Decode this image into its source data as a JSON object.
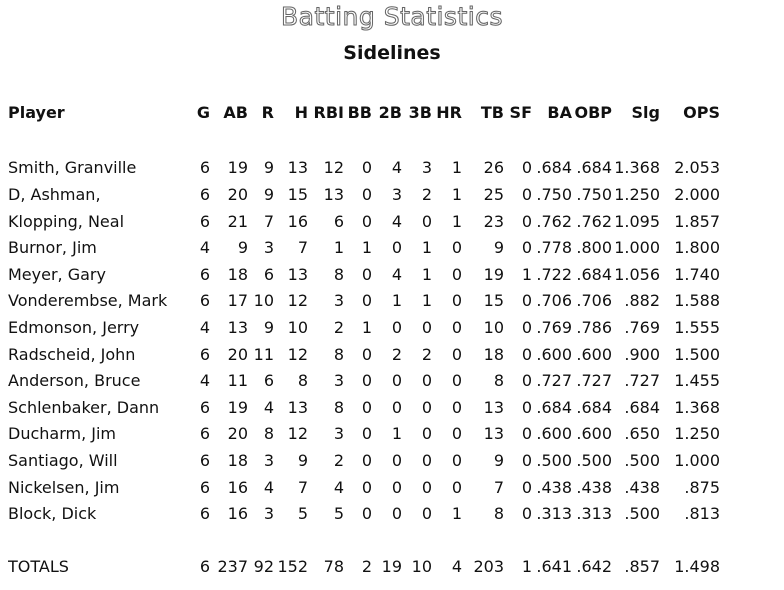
{
  "title": "Batting Statistics",
  "subtitle": "Sidelines",
  "columns": [
    "Player",
    "G",
    "AB",
    "R",
    "H",
    "RBI",
    "BB",
    "2B",
    "3B",
    "HR",
    "TB",
    "SF",
    "BA",
    "OBP",
    "Slg",
    "OPS"
  ],
  "rows": [
    [
      "Smith, Granville",
      "6",
      "19",
      "9",
      "13",
      "12",
      "0",
      "4",
      "3",
      "1",
      "26",
      "0",
      ".684",
      ".684",
      "1.368",
      "2.053"
    ],
    [
      "D, Ashman,",
      "6",
      "20",
      "9",
      "15",
      "13",
      "0",
      "3",
      "2",
      "1",
      "25",
      "0",
      ".750",
      ".750",
      "1.250",
      "2.000"
    ],
    [
      "Klopping, Neal",
      "6",
      "21",
      "7",
      "16",
      "6",
      "0",
      "4",
      "0",
      "1",
      "23",
      "0",
      ".762",
      ".762",
      "1.095",
      "1.857"
    ],
    [
      "Burnor, Jim",
      "4",
      "9",
      "3",
      "7",
      "1",
      "1",
      "0",
      "1",
      "0",
      "9",
      "0",
      ".778",
      ".800",
      "1.000",
      "1.800"
    ],
    [
      "Meyer, Gary",
      "6",
      "18",
      "6",
      "13",
      "8",
      "0",
      "4",
      "1",
      "0",
      "19",
      "1",
      ".722",
      ".684",
      "1.056",
      "1.740"
    ],
    [
      "Vonderembse, Mark",
      "6",
      "17",
      "10",
      "12",
      "3",
      "0",
      "1",
      "1",
      "0",
      "15",
      "0",
      ".706",
      ".706",
      ".882",
      "1.588"
    ],
    [
      "Edmonson, Jerry",
      "4",
      "13",
      "9",
      "10",
      "2",
      "1",
      "0",
      "0",
      "0",
      "10",
      "0",
      ".769",
      ".786",
      ".769",
      "1.555"
    ],
    [
      "Radscheid, John",
      "6",
      "20",
      "11",
      "12",
      "8",
      "0",
      "2",
      "2",
      "0",
      "18",
      "0",
      ".600",
      ".600",
      ".900",
      "1.500"
    ],
    [
      "Anderson, Bruce",
      "4",
      "11",
      "6",
      "8",
      "3",
      "0",
      "0",
      "0",
      "0",
      "8",
      "0",
      ".727",
      ".727",
      ".727",
      "1.455"
    ],
    [
      "Schlenbaker, Dann",
      "6",
      "19",
      "4",
      "13",
      "8",
      "0",
      "0",
      "0",
      "0",
      "13",
      "0",
      ".684",
      ".684",
      ".684",
      "1.368"
    ],
    [
      "Ducharm, Jim",
      "6",
      "20",
      "8",
      "12",
      "3",
      "0",
      "1",
      "0",
      "0",
      "13",
      "0",
      ".600",
      ".600",
      ".650",
      "1.250"
    ],
    [
      "Santiago, Will",
      "6",
      "18",
      "3",
      "9",
      "2",
      "0",
      "0",
      "0",
      "0",
      "9",
      "0",
      ".500",
      ".500",
      ".500",
      "1.000"
    ],
    [
      "Nickelsen, Jim",
      "6",
      "16",
      "4",
      "7",
      "4",
      "0",
      "0",
      "0",
      "0",
      "7",
      "0",
      ".438",
      ".438",
      ".438",
      ".875"
    ],
    [
      "Block, Dick",
      "6",
      "16",
      "3",
      "5",
      "5",
      "0",
      "0",
      "0",
      "1",
      "8",
      "0",
      ".313",
      ".313",
      ".500",
      ".813"
    ]
  ],
  "totals": [
    "TOTALS",
    "6",
    "237",
    "92",
    "152",
    "78",
    "2",
    "19",
    "10",
    "4",
    "203",
    "1",
    ".641",
    ".642",
    ".857",
    "1.498"
  ]
}
